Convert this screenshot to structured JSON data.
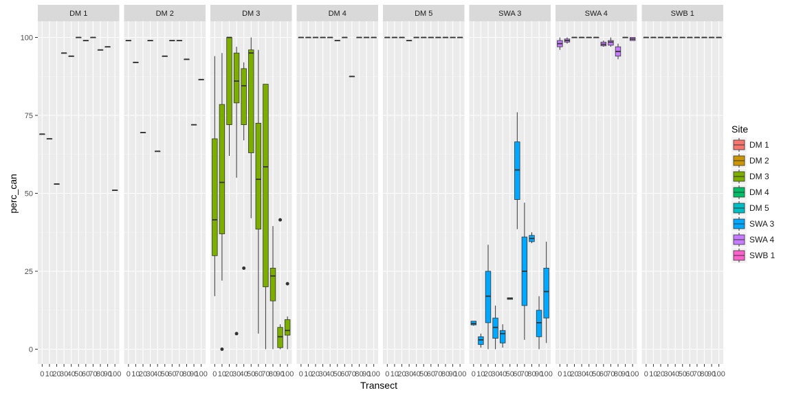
{
  "chart_data": {
    "type": "box",
    "xlabel": "Transect",
    "ylabel": "perc_can",
    "ylim": [
      0,
      100
    ],
    "yticks": [
      0,
      25,
      50,
      75,
      100
    ],
    "x_categories": [
      "0",
      "10",
      "20",
      "30",
      "40",
      "50",
      "60",
      "70",
      "80",
      "90",
      "100"
    ],
    "x_tick_labels": [
      "0",
      "10",
      "20",
      "30",
      "40",
      "50",
      "60",
      "70",
      "80",
      "90",
      "100"
    ],
    "legend": {
      "title": "Site",
      "position": "right",
      "entries": [
        {
          "name": "DM 1",
          "color": "#F8766D"
        },
        {
          "name": "DM 2",
          "color": "#CD9600"
        },
        {
          "name": "DM 3",
          "color": "#7CAE00"
        },
        {
          "name": "DM 4",
          "color": "#00BE67"
        },
        {
          "name": "DM 5",
          "color": "#00BFC4"
        },
        {
          "name": "SWA 3",
          "color": "#00A9FF"
        },
        {
          "name": "SWA 4",
          "color": "#C77CFF"
        },
        {
          "name": "SWB 1",
          "color": "#FF61CC"
        }
      ]
    },
    "panels": [
      {
        "site": "DM 1",
        "color": "#F8766D",
        "boxes": [
          {
            "x": 0,
            "min": 69,
            "q1": 69,
            "median": 69,
            "q3": 69,
            "max": 69
          },
          {
            "x": 10,
            "min": 67.5,
            "q1": 67.5,
            "median": 67.5,
            "q3": 67.5,
            "max": 67.5
          },
          {
            "x": 20,
            "min": 53,
            "q1": 53,
            "median": 53,
            "q3": 53,
            "max": 53
          },
          {
            "x": 30,
            "min": 95,
            "q1": 95,
            "median": 95,
            "q3": 95,
            "max": 95
          },
          {
            "x": 40,
            "min": 94,
            "q1": 94,
            "median": 94,
            "q3": 94,
            "max": 94
          },
          {
            "x": 50,
            "min": 100,
            "q1": 100,
            "median": 100,
            "q3": 100,
            "max": 100
          },
          {
            "x": 60,
            "min": 99,
            "q1": 99,
            "median": 99,
            "q3": 99,
            "max": 99
          },
          {
            "x": 70,
            "min": 100,
            "q1": 100,
            "median": 100,
            "q3": 100,
            "max": 100
          },
          {
            "x": 80,
            "min": 96,
            "q1": 96,
            "median": 96,
            "q3": 96,
            "max": 96
          },
          {
            "x": 90,
            "min": 97,
            "q1": 97,
            "median": 97,
            "q3": 97,
            "max": 97
          },
          {
            "x": 100,
            "min": 51,
            "q1": 51,
            "median": 51,
            "q3": 51,
            "max": 51
          }
        ]
      },
      {
        "site": "DM 2",
        "color": "#CD9600",
        "boxes": [
          {
            "x": 0,
            "min": 99,
            "q1": 99,
            "median": 99,
            "q3": 99,
            "max": 99
          },
          {
            "x": 10,
            "min": 92,
            "q1": 92,
            "median": 92,
            "q3": 92,
            "max": 92
          },
          {
            "x": 20,
            "min": 69.5,
            "q1": 69.5,
            "median": 69.5,
            "q3": 69.5,
            "max": 69.5
          },
          {
            "x": 30,
            "min": 99,
            "q1": 99,
            "median": 99,
            "q3": 99,
            "max": 99
          },
          {
            "x": 40,
            "min": 63.5,
            "q1": 63.5,
            "median": 63.5,
            "q3": 63.5,
            "max": 63.5
          },
          {
            "x": 50,
            "min": 94,
            "q1": 94,
            "median": 94,
            "q3": 94,
            "max": 94
          },
          {
            "x": 60,
            "min": 99,
            "q1": 99,
            "median": 99,
            "q3": 99,
            "max": 99
          },
          {
            "x": 70,
            "min": 99,
            "q1": 99,
            "median": 99,
            "q3": 99,
            "max": 99
          },
          {
            "x": 80,
            "min": 93,
            "q1": 93,
            "median": 93,
            "q3": 93,
            "max": 93
          },
          {
            "x": 90,
            "min": 72,
            "q1": 72,
            "median": 72,
            "q3": 72,
            "max": 72
          },
          {
            "x": 100,
            "min": 86.5,
            "q1": 86.5,
            "median": 86.5,
            "q3": 86.5,
            "max": 86.5
          }
        ]
      },
      {
        "site": "DM 3",
        "color": "#7CAE00",
        "boxes": [
          {
            "x": 0,
            "min": 17,
            "q1": 30,
            "median": 41.5,
            "q3": 67.5,
            "max": 94
          },
          {
            "x": 10,
            "min": 22,
            "q1": 37,
            "median": 53.5,
            "q3": 78.5,
            "max": 95,
            "outliers": [
              0
            ]
          },
          {
            "x": 20,
            "min": 62,
            "q1": 72,
            "median": 100,
            "q3": 100,
            "max": 100
          },
          {
            "x": 30,
            "min": 55,
            "q1": 79,
            "median": 86,
            "q3": 95,
            "max": 97,
            "outliers": [
              5
            ]
          },
          {
            "x": 40,
            "min": 67,
            "q1": 72,
            "median": 84.5,
            "q3": 90,
            "max": 92,
            "outliers": [
              26
            ]
          },
          {
            "x": 50,
            "min": 42,
            "q1": 63,
            "median": 95,
            "q3": 96,
            "max": 100
          },
          {
            "x": 60,
            "min": 5,
            "q1": 38.5,
            "median": 54.5,
            "q3": 72.5,
            "max": 96
          },
          {
            "x": 70,
            "min": 0,
            "q1": 20,
            "median": 58.5,
            "q3": 85,
            "max": 85
          },
          {
            "x": 80,
            "min": 0,
            "q1": 15.5,
            "median": 23.5,
            "q3": 26,
            "max": 39.5
          },
          {
            "x": 90,
            "min": 0,
            "q1": 0.5,
            "median": 4,
            "q3": 7,
            "max": 8,
            "outliers": [
              41.5
            ]
          },
          {
            "x": 100,
            "min": 0,
            "q1": 4.5,
            "median": 6,
            "q3": 9.5,
            "max": 10.5,
            "outliers": [
              21
            ]
          }
        ]
      },
      {
        "site": "DM 4",
        "color": "#00BE67",
        "boxes": [
          {
            "x": 0,
            "min": 100,
            "q1": 100,
            "median": 100,
            "q3": 100,
            "max": 100
          },
          {
            "x": 10,
            "min": 100,
            "q1": 100,
            "median": 100,
            "q3": 100,
            "max": 100
          },
          {
            "x": 20,
            "min": 100,
            "q1": 100,
            "median": 100,
            "q3": 100,
            "max": 100
          },
          {
            "x": 30,
            "min": 100,
            "q1": 100,
            "median": 100,
            "q3": 100,
            "max": 100
          },
          {
            "x": 40,
            "min": 100,
            "q1": 100,
            "median": 100,
            "q3": 100,
            "max": 100
          },
          {
            "x": 50,
            "min": 99,
            "q1": 99,
            "median": 99,
            "q3": 99,
            "max": 99
          },
          {
            "x": 60,
            "min": 100,
            "q1": 100,
            "median": 100,
            "q3": 100,
            "max": 100
          },
          {
            "x": 70,
            "min": 87.5,
            "q1": 87.5,
            "median": 87.5,
            "q3": 87.5,
            "max": 87.5
          },
          {
            "x": 80,
            "min": 100,
            "q1": 100,
            "median": 100,
            "q3": 100,
            "max": 100
          },
          {
            "x": 90,
            "min": 100,
            "q1": 100,
            "median": 100,
            "q3": 100,
            "max": 100
          },
          {
            "x": 100,
            "min": 100,
            "q1": 100,
            "median": 100,
            "q3": 100,
            "max": 100
          }
        ]
      },
      {
        "site": "DM 5",
        "color": "#00BFC4",
        "boxes": [
          {
            "x": 0,
            "min": 100,
            "q1": 100,
            "median": 100,
            "q3": 100,
            "max": 100
          },
          {
            "x": 10,
            "min": 100,
            "q1": 100,
            "median": 100,
            "q3": 100,
            "max": 100
          },
          {
            "x": 20,
            "min": 100,
            "q1": 100,
            "median": 100,
            "q3": 100,
            "max": 100
          },
          {
            "x": 30,
            "min": 99,
            "q1": 99,
            "median": 99,
            "q3": 99,
            "max": 99
          },
          {
            "x": 40,
            "min": 100,
            "q1": 100,
            "median": 100,
            "q3": 100,
            "max": 100
          },
          {
            "x": 50,
            "min": 100,
            "q1": 100,
            "median": 100,
            "q3": 100,
            "max": 100
          },
          {
            "x": 60,
            "min": 100,
            "q1": 100,
            "median": 100,
            "q3": 100,
            "max": 100
          },
          {
            "x": 70,
            "min": 100,
            "q1": 100,
            "median": 100,
            "q3": 100,
            "max": 100
          },
          {
            "x": 80,
            "min": 100,
            "q1": 100,
            "median": 100,
            "q3": 100,
            "max": 100
          },
          {
            "x": 90,
            "min": 100,
            "q1": 100,
            "median": 100,
            "q3": 100,
            "max": 100
          },
          {
            "x": 100,
            "min": 100,
            "q1": 100,
            "median": 100,
            "q3": 100,
            "max": 100
          }
        ]
      },
      {
        "site": "SWA 3",
        "color": "#00A9FF",
        "boxes": [
          {
            "x": 0,
            "min": 7.5,
            "q1": 7.8,
            "median": 8.2,
            "q3": 9,
            "max": 9
          },
          {
            "x": 10,
            "min": 0.5,
            "q1": 1.5,
            "median": 3,
            "q3": 4,
            "max": 5
          },
          {
            "x": 20,
            "min": 0,
            "q1": 8.5,
            "median": 17,
            "q3": 25,
            "max": 33.5
          },
          {
            "x": 30,
            "min": 0,
            "q1": 3.5,
            "median": 7,
            "q3": 10,
            "max": 14
          },
          {
            "x": 40,
            "min": 0.5,
            "q1": 2,
            "median": 5,
            "q3": 6,
            "max": 8
          },
          {
            "x": 50,
            "min": 16,
            "q1": 16,
            "median": 16.2,
            "q3": 16.5,
            "max": 16.5
          },
          {
            "x": 60,
            "min": 38.5,
            "q1": 48,
            "median": 57.5,
            "q3": 66.5,
            "max": 76
          },
          {
            "x": 70,
            "min": 3,
            "q1": 14,
            "median": 25,
            "q3": 36,
            "max": 47
          },
          {
            "x": 80,
            "min": 34,
            "q1": 34.5,
            "median": 35.5,
            "q3": 36.5,
            "max": 37.5
          },
          {
            "x": 90,
            "min": 0,
            "q1": 4,
            "median": 8.5,
            "q3": 12.5,
            "max": 17
          },
          {
            "x": 100,
            "min": 2,
            "q1": 10,
            "median": 18.5,
            "q3": 26,
            "max": 34.5
          }
        ]
      },
      {
        "site": "SWA 4",
        "color": "#C77CFF",
        "boxes": [
          {
            "x": 0,
            "min": 96,
            "q1": 97,
            "median": 98,
            "q3": 99,
            "max": 100
          },
          {
            "x": 10,
            "min": 98,
            "q1": 98.5,
            "median": 99,
            "q3": 99.5,
            "max": 100
          },
          {
            "x": 20,
            "min": 100,
            "q1": 100,
            "median": 100,
            "q3": 100,
            "max": 100
          },
          {
            "x": 30,
            "min": 100,
            "q1": 100,
            "median": 100,
            "q3": 100,
            "max": 100
          },
          {
            "x": 40,
            "min": 100,
            "q1": 100,
            "median": 100,
            "q3": 100,
            "max": 100
          },
          {
            "x": 50,
            "min": 100,
            "q1": 100,
            "median": 100,
            "q3": 100,
            "max": 100
          },
          {
            "x": 60,
            "min": 97,
            "q1": 97.3,
            "median": 97.8,
            "q3": 98.5,
            "max": 99
          },
          {
            "x": 70,
            "min": 97,
            "q1": 97.5,
            "median": 98.5,
            "q3": 99,
            "max": 100
          },
          {
            "x": 80,
            "min": 93,
            "q1": 94,
            "median": 95.5,
            "q3": 97,
            "max": 98
          },
          {
            "x": 90,
            "min": 100,
            "q1": 100,
            "median": 100,
            "q3": 100,
            "max": 100
          },
          {
            "x": 100,
            "min": 99,
            "q1": 99,
            "median": 99.5,
            "q3": 100,
            "max": 100
          }
        ]
      },
      {
        "site": "SWB 1",
        "color": "#FF61CC",
        "boxes": [
          {
            "x": 0,
            "min": 100,
            "q1": 100,
            "median": 100,
            "q3": 100,
            "max": 100
          },
          {
            "x": 10,
            "min": 100,
            "q1": 100,
            "median": 100,
            "q3": 100,
            "max": 100
          },
          {
            "x": 20,
            "min": 100,
            "q1": 100,
            "median": 100,
            "q3": 100,
            "max": 100
          },
          {
            "x": 30,
            "min": 100,
            "q1": 100,
            "median": 100,
            "q3": 100,
            "max": 100
          },
          {
            "x": 40,
            "min": 100,
            "q1": 100,
            "median": 100,
            "q3": 100,
            "max": 100
          },
          {
            "x": 50,
            "min": 100,
            "q1": 100,
            "median": 100,
            "q3": 100,
            "max": 100
          },
          {
            "x": 60,
            "min": 100,
            "q1": 100,
            "median": 100,
            "q3": 100,
            "max": 100
          },
          {
            "x": 70,
            "min": 100,
            "q1": 100,
            "median": 100,
            "q3": 100,
            "max": 100
          },
          {
            "x": 80,
            "min": 100,
            "q1": 100,
            "median": 100,
            "q3": 100,
            "max": 100
          },
          {
            "x": 90,
            "min": 100,
            "q1": 100,
            "median": 100,
            "q3": 100,
            "max": 100
          },
          {
            "x": 100,
            "min": 100,
            "q1": 100,
            "median": 100,
            "q3": 100,
            "max": 100
          }
        ]
      }
    ]
  }
}
